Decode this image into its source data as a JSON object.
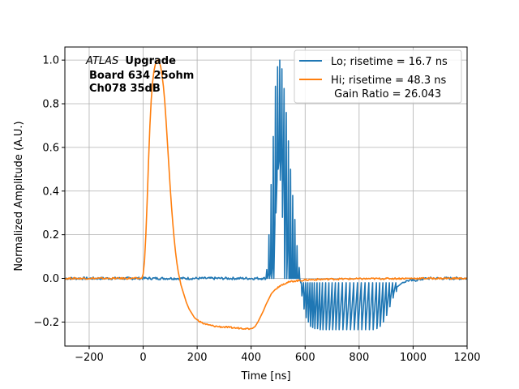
{
  "chart_data": {
    "type": "line",
    "xlabel": "Time [ns]",
    "ylabel": "Normalized Amplitude (A.U.)",
    "xlim": [
      -290,
      1200
    ],
    "ylim": [
      -0.31,
      1.06
    ],
    "xticks": [
      -200,
      0,
      200,
      400,
      600,
      800,
      1000,
      1200
    ],
    "yticks": [
      -0.2,
      0.0,
      0.2,
      0.4,
      0.6,
      0.8,
      1.0
    ],
    "xtick_labels": [
      "−200",
      "0",
      "200",
      "400",
      "600",
      "800",
      "1000",
      "1200"
    ],
    "ytick_labels": [
      "−0.2",
      "0.0",
      "0.2",
      "0.4",
      "0.6",
      "0.8",
      "1.0"
    ],
    "grid": true,
    "legend_position": "upper-right",
    "annotation": {
      "italic": "ATLAS",
      "bold": "Upgrade",
      "line2": "Board 634 25ohm",
      "line3": "Ch078 35dB"
    },
    "series": [
      {
        "name": "Lo; risetime = 16.7 ns",
        "color": "#1f77b4",
        "baseline_noise": 0.006,
        "points": [
          [
            -290,
            0.0
          ],
          [
            -200,
            0.0
          ],
          [
            -100,
            0.0
          ],
          [
            0,
            0.0
          ],
          [
            100,
            0.0
          ],
          [
            200,
            0.0
          ],
          [
            300,
            0.0
          ],
          [
            440,
            0.0
          ],
          [
            455,
            0.0
          ],
          [
            458,
            0.04
          ],
          [
            460,
            0.0
          ],
          [
            464,
            0.02
          ],
          [
            466,
            0.2
          ],
          [
            468,
            0.0
          ],
          [
            472,
            0.03
          ],
          [
            474,
            0.43
          ],
          [
            476,
            0.0
          ],
          [
            480,
            0.06
          ],
          [
            482,
            0.65
          ],
          [
            484,
            0.0
          ],
          [
            488,
            0.25
          ],
          [
            490,
            0.88
          ],
          [
            492,
            0.3
          ],
          [
            496,
            0.45
          ],
          [
            498,
            0.97
          ],
          [
            500,
            0.5
          ],
          [
            504,
            0.55
          ],
          [
            506,
            1.0
          ],
          [
            508,
            0.45
          ],
          [
            512,
            0.6
          ],
          [
            514,
            0.96
          ],
          [
            516,
            0.28
          ],
          [
            520,
            0.6
          ],
          [
            522,
            0.87
          ],
          [
            524,
            0.0
          ],
          [
            528,
            0.45
          ],
          [
            530,
            0.76
          ],
          [
            532,
            0.0
          ],
          [
            536,
            0.18
          ],
          [
            538,
            0.63
          ],
          [
            540,
            0.0
          ],
          [
            544,
            0.0
          ],
          [
            546,
            0.5
          ],
          [
            548,
            0.0
          ],
          [
            552,
            0.0
          ],
          [
            554,
            0.38
          ],
          [
            556,
            0.0
          ],
          [
            560,
            0.0
          ],
          [
            562,
            0.27
          ],
          [
            564,
            0.0
          ],
          [
            568,
            0.0
          ],
          [
            570,
            0.15
          ],
          [
            572,
            0.0
          ],
          [
            576,
            0.0
          ],
          [
            578,
            0.05
          ],
          [
            580,
            0.0
          ],
          [
            584,
            -0.02
          ],
          [
            586,
            -0.02
          ],
          [
            588,
            -0.08
          ],
          [
            590,
            -0.06
          ],
          [
            594,
            -0.02
          ],
          [
            596,
            -0.14
          ],
          [
            598,
            -0.1
          ],
          [
            602,
            -0.02
          ],
          [
            604,
            -0.18
          ],
          [
            606,
            -0.12
          ],
          [
            610,
            -0.02
          ],
          [
            612,
            -0.2
          ],
          [
            614,
            -0.14
          ],
          [
            618,
            -0.02
          ],
          [
            620,
            -0.22
          ],
          [
            622,
            -0.16
          ],
          [
            626,
            -0.02
          ],
          [
            628,
            -0.225
          ],
          [
            630,
            -0.17
          ],
          [
            634,
            -0.02
          ],
          [
            636,
            -0.23
          ],
          [
            638,
            -0.18
          ],
          [
            644,
            -0.02
          ],
          [
            646,
            -0.23
          ],
          [
            648,
            -0.19
          ],
          [
            654,
            -0.02
          ],
          [
            656,
            -0.235
          ],
          [
            658,
            -0.2
          ],
          [
            664,
            -0.02
          ],
          [
            666,
            -0.235
          ],
          [
            668,
            -0.2
          ],
          [
            676,
            -0.02
          ],
          [
            678,
            -0.235
          ],
          [
            680,
            -0.2
          ],
          [
            688,
            -0.02
          ],
          [
            690,
            -0.235
          ],
          [
            692,
            -0.2
          ],
          [
            700,
            -0.02
          ],
          [
            702,
            -0.235
          ],
          [
            704,
            -0.2
          ],
          [
            712,
            -0.02
          ],
          [
            714,
            -0.235
          ],
          [
            716,
            -0.2
          ],
          [
            724,
            -0.02
          ],
          [
            726,
            -0.235
          ],
          [
            728,
            -0.2
          ],
          [
            738,
            -0.02
          ],
          [
            740,
            -0.235
          ],
          [
            742,
            -0.2
          ],
          [
            752,
            -0.02
          ],
          [
            754,
            -0.235
          ],
          [
            756,
            -0.2
          ],
          [
            766,
            -0.02
          ],
          [
            768,
            -0.235
          ],
          [
            770,
            -0.2
          ],
          [
            780,
            -0.02
          ],
          [
            782,
            -0.235
          ],
          [
            784,
            -0.2
          ],
          [
            794,
            -0.02
          ],
          [
            796,
            -0.235
          ],
          [
            798,
            -0.2
          ],
          [
            808,
            -0.02
          ],
          [
            810,
            -0.235
          ],
          [
            812,
            -0.2
          ],
          [
            822,
            -0.02
          ],
          [
            824,
            -0.235
          ],
          [
            826,
            -0.2
          ],
          [
            836,
            -0.02
          ],
          [
            838,
            -0.235
          ],
          [
            840,
            -0.2
          ],
          [
            850,
            -0.02
          ],
          [
            852,
            -0.235
          ],
          [
            854,
            -0.2
          ],
          [
            864,
            -0.02
          ],
          [
            866,
            -0.23
          ],
          [
            868,
            -0.2
          ],
          [
            876,
            -0.02
          ],
          [
            878,
            -0.22
          ],
          [
            880,
            -0.19
          ],
          [
            888,
            -0.02
          ],
          [
            890,
            -0.2
          ],
          [
            892,
            -0.17
          ],
          [
            900,
            -0.02
          ],
          [
            902,
            -0.17
          ],
          [
            904,
            -0.14
          ],
          [
            912,
            -0.02
          ],
          [
            914,
            -0.13
          ],
          [
            916,
            -0.1
          ],
          [
            924,
            -0.02
          ],
          [
            926,
            -0.09
          ],
          [
            928,
            -0.07
          ],
          [
            936,
            -0.02
          ],
          [
            938,
            -0.06
          ],
          [
            940,
            -0.04
          ],
          [
            950,
            -0.03
          ],
          [
            960,
            -0.02
          ],
          [
            980,
            -0.01
          ],
          [
            1000,
            -0.01
          ],
          [
            1050,
            0.0
          ],
          [
            1100,
            0.0
          ],
          [
            1200,
            0.0
          ]
        ]
      },
      {
        "name": "Hi; risetime = 48.3 ns",
        "name_line2": " Gain Ratio = 26.043",
        "color": "#ff7f0e",
        "baseline_noise": 0.004,
        "points": [
          [
            -290,
            0.0
          ],
          [
            -200,
            0.0
          ],
          [
            -100,
            0.0
          ],
          [
            -20,
            0.0
          ],
          [
            -5,
            0.0
          ],
          [
            0,
            0.02
          ],
          [
            5,
            0.08
          ],
          [
            10,
            0.2
          ],
          [
            15,
            0.36
          ],
          [
            20,
            0.54
          ],
          [
            25,
            0.7
          ],
          [
            30,
            0.82
          ],
          [
            35,
            0.9
          ],
          [
            40,
            0.95
          ],
          [
            45,
            0.98
          ],
          [
            50,
            0.995
          ],
          [
            55,
            1.0
          ],
          [
            60,
            0.99
          ],
          [
            65,
            0.97
          ],
          [
            70,
            0.93
          ],
          [
            75,
            0.88
          ],
          [
            80,
            0.81
          ],
          [
            85,
            0.72
          ],
          [
            90,
            0.62
          ],
          [
            95,
            0.52
          ],
          [
            100,
            0.42
          ],
          [
            105,
            0.33
          ],
          [
            110,
            0.25
          ],
          [
            115,
            0.18
          ],
          [
            120,
            0.12
          ],
          [
            125,
            0.07
          ],
          [
            130,
            0.03
          ],
          [
            135,
            0.0
          ],
          [
            140,
            -0.03
          ],
          [
            150,
            -0.07
          ],
          [
            160,
            -0.11
          ],
          [
            170,
            -0.14
          ],
          [
            180,
            -0.16
          ],
          [
            190,
            -0.18
          ],
          [
            200,
            -0.19
          ],
          [
            220,
            -0.205
          ],
          [
            240,
            -0.213
          ],
          [
            260,
            -0.218
          ],
          [
            280,
            -0.221
          ],
          [
            300,
            -0.223
          ],
          [
            320,
            -0.225
          ],
          [
            340,
            -0.227
          ],
          [
            360,
            -0.228
          ],
          [
            380,
            -0.229
          ],
          [
            395,
            -0.231
          ],
          [
            405,
            -0.229
          ],
          [
            415,
            -0.22
          ],
          [
            425,
            -0.2
          ],
          [
            435,
            -0.175
          ],
          [
            445,
            -0.15
          ],
          [
            455,
            -0.12
          ],
          [
            465,
            -0.095
          ],
          [
            475,
            -0.07
          ],
          [
            490,
            -0.05
          ],
          [
            505,
            -0.035
          ],
          [
            520,
            -0.025
          ],
          [
            540,
            -0.017
          ],
          [
            560,
            -0.012
          ],
          [
            580,
            -0.01
          ],
          [
            600,
            -0.007
          ],
          [
            640,
            -0.005
          ],
          [
            700,
            -0.003
          ],
          [
            800,
            -0.002
          ],
          [
            900,
            -0.001
          ],
          [
            1000,
            0.0
          ],
          [
            1100,
            0.0
          ],
          [
            1200,
            0.0
          ]
        ]
      }
    ]
  }
}
